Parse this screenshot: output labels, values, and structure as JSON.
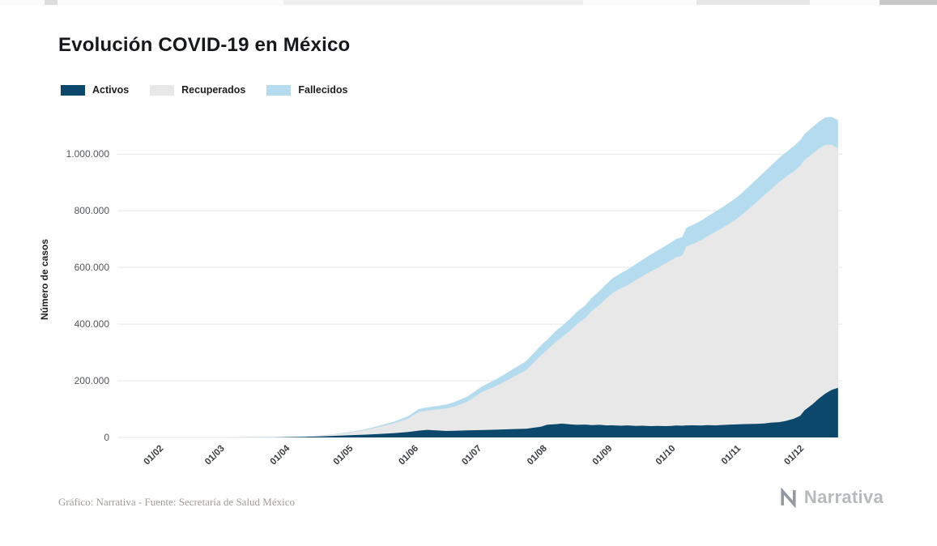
{
  "page": {
    "title": "Evolución COVID-19 en México"
  },
  "footer": {
    "credit": "Gráfico: Narrativa - Fuente: Secretaría de Salud México",
    "brand": "Narrativa"
  },
  "chart_data": {
    "type": "area",
    "stacked": true,
    "title": "Evolución COVID-19 en México",
    "ylabel": "Número de casos",
    "xlabel": "",
    "ylim": [
      0,
      1115000
    ],
    "grid": "horizontal",
    "legend_position": "top-left",
    "x_unit": "days since 01/02/2020",
    "x_domain_days": [
      -22,
      322
    ],
    "y_ticks": [
      {
        "value": 0,
        "label": "0"
      },
      {
        "value": 200000,
        "label": "200.000"
      },
      {
        "value": 400000,
        "label": "400.000"
      },
      {
        "value": 600000,
        "label": "600.000"
      },
      {
        "value": 800000,
        "label": "800.000"
      },
      {
        "value": 1000000,
        "label": "1.000.000"
      }
    ],
    "x_ticks": [
      {
        "day": 0,
        "label": "01/02"
      },
      {
        "day": 29,
        "label": "01/03"
      },
      {
        "day": 60,
        "label": "01/04"
      },
      {
        "day": 90,
        "label": "01/05"
      },
      {
        "day": 121,
        "label": "01/06"
      },
      {
        "day": 151,
        "label": "01/07"
      },
      {
        "day": 182,
        "label": "01/08"
      },
      {
        "day": 213,
        "label": "01/09"
      },
      {
        "day": 243,
        "label": "01/10"
      },
      {
        "day": 274,
        "label": "01/11"
      },
      {
        "day": 304,
        "label": "01/12"
      }
    ],
    "x_days": [
      -22,
      0,
      20,
      29,
      45,
      52,
      60,
      67,
      74,
      81,
      88,
      95,
      102,
      109,
      116,
      121,
      125,
      130,
      134,
      138,
      144,
      151,
      158,
      165,
      172,
      179,
      182,
      186,
      189,
      193,
      196,
      200,
      203,
      207,
      210,
      213,
      217,
      220,
      224,
      227,
      231,
      234,
      238,
      241,
      243,
      246,
      248,
      251,
      255,
      258,
      262,
      265,
      269,
      272,
      274,
      278,
      281,
      285,
      288,
      292,
      295,
      299,
      302,
      304,
      308,
      311,
      314,
      317,
      320
    ],
    "series": [
      {
        "name": "Activos",
        "color": "#0b486b",
        "values": [
          0,
          0,
          0,
          0,
          150,
          400,
          1300,
          2300,
          3600,
          5600,
          7700,
          9700,
          12200,
          15200,
          19500,
          24000,
          27000,
          24500,
          23000,
          23800,
          25000,
          26000,
          27500,
          29500,
          31000,
          38000,
          45000,
          47000,
          49000,
          46000,
          44500,
          45500,
          43500,
          44500,
          42500,
          43000,
          41500,
          42500,
          40500,
          41500,
          40000,
          41000,
          40000,
          41000,
          42000,
          41500,
          42500,
          43000,
          42000,
          43500,
          42500,
          44000,
          45500,
          46000,
          47000,
          47500,
          48000,
          49500,
          52000,
          54000,
          58000,
          66000,
          76000,
          95000,
          118000,
          138000,
          155000,
          168000,
          175000
        ]
      },
      {
        "name": "Recuperados",
        "color": "#e8e8e8",
        "values": [
          0,
          0,
          0,
          0,
          80,
          200,
          900,
          1700,
          3100,
          5200,
          9300,
          15500,
          24500,
          34000,
          47000,
          66000,
          68000,
          74000,
          79000,
          85000,
          101000,
          134000,
          155000,
          180000,
          207000,
          252000,
          264000,
          290500,
          305000,
          332000,
          355000,
          375000,
          401500,
          424500,
          448000,
          467000,
          485000,
          494500,
          514000,
          526500,
          545500,
          556000,
          573500,
          585500,
          593500,
          600000,
          631000,
          639500,
          654000,
          666500,
          684000,
          695000,
          712000,
          726000,
          736000,
          761500,
          780500,
          805500,
          822500,
          846500,
          860000,
          873000,
          882500,
          883000,
          884000,
          881500,
          878000,
          865000,
          846000
        ]
      },
      {
        "name": "Fallecidos",
        "color": "#b5dcee",
        "values": [
          0,
          0,
          0,
          0,
          10,
          30,
          60,
          200,
          500,
          1000,
          1800,
          2800,
          4300,
          5900,
          8300,
          10000,
          11000,
          13000,
          14500,
          16000,
          18000,
          20000,
          24000,
          28000,
          31500,
          35000,
          36500,
          38500,
          40000,
          42000,
          43500,
          45500,
          47000,
          49000,
          50500,
          52000,
          53500,
          55000,
          56500,
          58000,
          59500,
          61000,
          62500,
          63500,
          64500,
          65500,
          66500,
          67500,
          69000,
          70000,
          71500,
          73000,
          74500,
          76000,
          77000,
          79000,
          80500,
          82000,
          83500,
          85500,
          87000,
          89000,
          90500,
          92000,
          94000,
          95500,
          97000,
          98000,
          99000
        ]
      }
    ]
  }
}
